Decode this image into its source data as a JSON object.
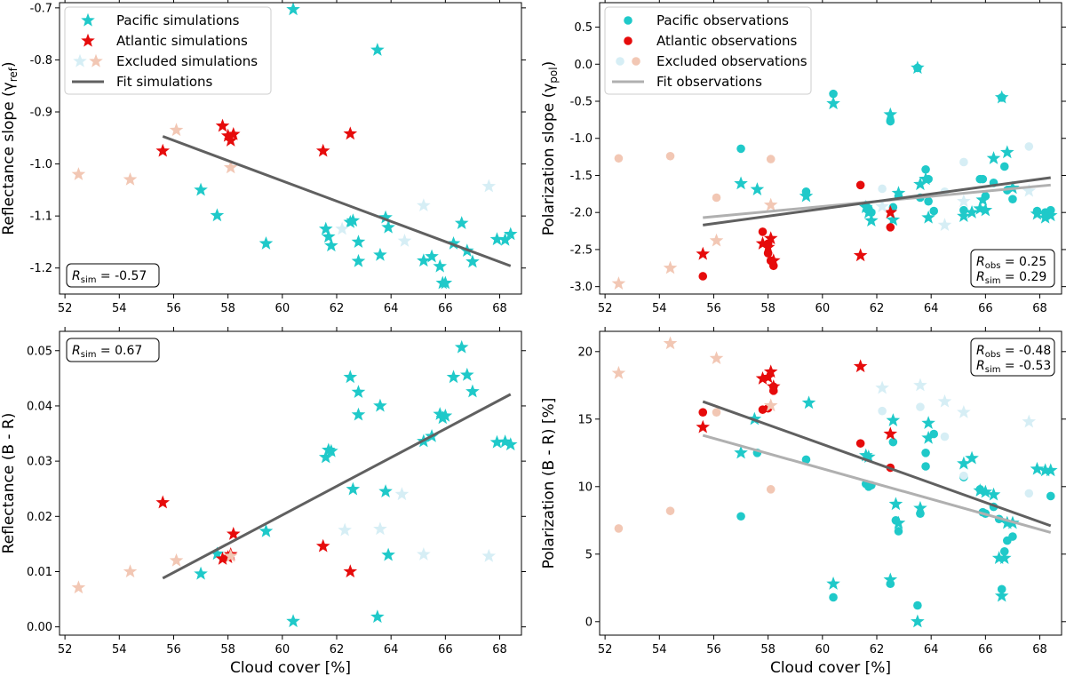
{
  "colors": {
    "pacific": "#1fc9c9",
    "atlantic": "#e60b0b",
    "excluded_pacific": "#d6eef5",
    "excluded_atlantic": "#f2c7b4",
    "fit_sim": "#606060",
    "fit_obs": "#b0b0b0"
  },
  "chart_data": [
    {
      "id": "tl",
      "type": "scatter",
      "xlim": [
        51.8,
        68.8
      ],
      "ylim": [
        -1.25,
        -0.69
      ],
      "xticks": [
        52,
        54,
        56,
        58,
        60,
        62,
        64,
        66,
        68
      ],
      "yticks": [
        -1.2,
        -1.1,
        -1.0,
        -0.9,
        -0.8,
        -0.7
      ],
      "ytick_labels": [
        "-1.2",
        "-1.1",
        "-1.0",
        "-0.9",
        "-0.8",
        "-0.7"
      ],
      "xlabel": "",
      "ylabel": "Reflectance slope (γ",
      "ylabel_sub": "ref",
      "ylabel_end": ")",
      "legend": [
        {
          "label": "Pacific simulations",
          "marker": "star",
          "color": "pacific"
        },
        {
          "label": "Atlantic simulations",
          "marker": "star",
          "color": "atlantic"
        },
        {
          "label": "Excluded simulations",
          "marker": "star-pair",
          "color": "excluded"
        },
        {
          "label": "Fit simulations",
          "marker": "line",
          "color": "fit_sim"
        }
      ],
      "r_box": {
        "lines": [
          {
            "name": "R",
            "sub": "sim",
            "value": " = -0.57"
          }
        ],
        "position": "bottom-left"
      },
      "fits": [
        {
          "x": [
            55.6,
            68.4
          ],
          "y": [
            -0.947,
            -1.196
          ],
          "color": "fit_sim"
        }
      ],
      "series": [
        {
          "name": "Pacific simulations",
          "marker": "star",
          "color": "pacific",
          "x": [
            60.4,
            63.5,
            57.0,
            57.6,
            59.4,
            61.6,
            61.7,
            61.8,
            62.5,
            62.6,
            62.8,
            62.8,
            63.6,
            63.8,
            63.9,
            65.2,
            65.5,
            65.8,
            65.9,
            66.0,
            66.3,
            66.6,
            66.8,
            67.0,
            67.9,
            68.2,
            68.4
          ],
          "y": [
            -0.703,
            -0.781,
            -1.05,
            -1.099,
            -1.153,
            -1.125,
            -1.14,
            -1.157,
            -1.112,
            -1.109,
            -1.15,
            -1.187,
            -1.175,
            -1.103,
            -1.122,
            -1.186,
            -1.178,
            -1.197,
            -1.229,
            -1.229,
            -1.153,
            -1.114,
            -1.167,
            -1.188,
            -1.145,
            -1.146,
            -1.135
          ]
        },
        {
          "name": "Atlantic simulations",
          "marker": "star",
          "color": "atlantic",
          "x": [
            55.6,
            57.8,
            58.0,
            58.1,
            58.2,
            61.5,
            62.5
          ],
          "y": [
            -0.975,
            -0.927,
            -0.946,
            -0.955,
            -0.943,
            -0.975,
            -0.942
          ]
        },
        {
          "name": "Excluded simulations",
          "marker": "star",
          "color": "excluded_atlantic",
          "x": [
            52.5,
            54.4,
            56.1,
            58.1
          ],
          "y": [
            -1.02,
            -1.03,
            -0.935,
            -1.007
          ]
        },
        {
          "name": "Excluded simulations",
          "marker": "star",
          "color": "excluded_pacific",
          "x": [
            62.2,
            64.5,
            65.2,
            67.6
          ],
          "y": [
            -1.125,
            -1.148,
            -1.08,
            -1.043
          ]
        }
      ]
    },
    {
      "id": "tr",
      "type": "scatter",
      "xlim": [
        51.8,
        68.8
      ],
      "ylim": [
        -3.1,
        0.83
      ],
      "xticks": [
        52,
        54,
        56,
        58,
        60,
        62,
        64,
        66,
        68
      ],
      "yticks": [
        -3.0,
        -2.5,
        -2.0,
        -1.5,
        -1.0,
        -0.5,
        0.0,
        0.5
      ],
      "ytick_labels": [
        "-3.0",
        "-2.5",
        "-2.0",
        "-1.5",
        "-1.0",
        "-0.5",
        "0.0",
        "0.5"
      ],
      "xlabel": "",
      "ylabel": "Polarization slope (γ",
      "ylabel_sub": "pol",
      "ylabel_end": ")",
      "legend": [
        {
          "label": "Pacific observations",
          "marker": "circle",
          "color": "pacific"
        },
        {
          "label": "Atlantic observations",
          "marker": "circle",
          "color": "atlantic"
        },
        {
          "label": "Excluded observations",
          "marker": "circle-pair",
          "color": "excluded"
        },
        {
          "label": "Fit observations",
          "marker": "line",
          "color": "fit_obs"
        }
      ],
      "r_box": {
        "lines": [
          {
            "name": "R",
            "sub": "obs",
            "value": " = 0.25"
          },
          {
            "name": "R",
            "sub": "sim",
            "value": " = 0.29"
          }
        ],
        "position": "bottom-right"
      },
      "fits": [
        {
          "x": [
            55.6,
            68.4
          ],
          "y": [
            -2.07,
            -1.63
          ],
          "color": "fit_obs"
        },
        {
          "x": [
            55.6,
            68.4
          ],
          "y": [
            -2.17,
            -1.53
          ],
          "color": "fit_sim"
        }
      ],
      "series": [
        {
          "name": "Pacific observations",
          "marker": "circle",
          "color": "pacific",
          "x": [
            57.0,
            60.4,
            63.5,
            66.6,
            62.5,
            59.4,
            61.6,
            61.7,
            61.8,
            62.6,
            62.8,
            63.6,
            63.8,
            63.9,
            63.9,
            64.1,
            65.2,
            65.8,
            65.9,
            66.0,
            66.3,
            66.7,
            66.8,
            67.0,
            67.9,
            68.2,
            68.4
          ],
          "y": [
            -1.14,
            -0.4,
            -0.05,
            -0.45,
            -0.77,
            -1.72,
            -1.9,
            -1.95,
            -2.0,
            -1.93,
            -1.78,
            -1.8,
            -1.42,
            -1.55,
            -1.85,
            -1.98,
            -1.97,
            -1.55,
            -1.55,
            -1.78,
            -1.6,
            -1.38,
            -1.7,
            -1.82,
            -1.98,
            -2.0,
            -1.97
          ]
        },
        {
          "name": "Pacific simulations",
          "marker": "star",
          "color": "pacific",
          "x": [
            57.0,
            57.6,
            59.4,
            60.4,
            61.6,
            61.7,
            61.8,
            62.5,
            62.6,
            62.8,
            63.5,
            63.6,
            63.8,
            63.9,
            65.2,
            65.5,
            65.8,
            65.9,
            66.0,
            66.3,
            66.6,
            66.8,
            67.0,
            67.9,
            68.2,
            68.4
          ],
          "y": [
            -1.61,
            -1.69,
            -1.78,
            -0.53,
            -1.93,
            -2.0,
            -2.11,
            -0.68,
            -2.1,
            -1.74,
            -0.05,
            -1.62,
            -1.55,
            -2.07,
            -2.05,
            -2.0,
            -1.95,
            -1.83,
            -1.97,
            -1.27,
            -0.45,
            -1.19,
            -1.67,
            -2.02,
            -2.07,
            -2.04
          ]
        },
        {
          "name": "Atlantic observations",
          "marker": "circle",
          "color": "atlantic",
          "x": [
            55.6,
            57.8,
            58.0,
            58.0,
            58.1,
            58.2,
            61.4,
            62.5
          ],
          "y": [
            -2.86,
            -2.26,
            -2.42,
            -2.55,
            -2.65,
            -2.72,
            -1.63,
            -2.2
          ]
        },
        {
          "name": "Atlantic simulations",
          "marker": "star",
          "color": "atlantic",
          "x": [
            55.6,
            57.8,
            58.0,
            58.1,
            58.2,
            61.4,
            62.5
          ],
          "y": [
            -2.56,
            -2.42,
            -2.47,
            -2.35,
            -2.65,
            -2.58,
            -2.0
          ]
        },
        {
          "name": "Excluded observations",
          "marker": "circle",
          "color": "excluded_atlantic",
          "x": [
            52.5,
            54.4,
            56.1,
            58.1
          ],
          "y": [
            -1.27,
            -1.24,
            -1.8,
            -1.28
          ]
        },
        {
          "name": "Excluded observations",
          "marker": "circle",
          "color": "excluded_pacific",
          "x": [
            62.2,
            64.5,
            65.2,
            67.6
          ],
          "y": [
            -1.68,
            -1.72,
            -1.32,
            -1.11
          ]
        },
        {
          "name": "Excluded simulations",
          "marker": "star",
          "color": "excluded_atlantic",
          "x": [
            52.5,
            54.4,
            56.1,
            58.1
          ],
          "y": [
            -2.96,
            -2.75,
            -2.38,
            -1.9
          ]
        },
        {
          "name": "Excluded simulations",
          "marker": "star",
          "color": "excluded_pacific",
          "x": [
            62.2,
            64.5,
            65.2,
            67.6
          ],
          "y": [
            -1.92,
            -2.17,
            -1.85,
            -1.71
          ]
        }
      ]
    },
    {
      "id": "bl",
      "type": "scatter",
      "xlim": [
        51.8,
        68.8
      ],
      "ylim": [
        -0.0015,
        0.0535
      ],
      "xticks": [
        52,
        54,
        56,
        58,
        60,
        62,
        64,
        66,
        68
      ],
      "yticks": [
        0.0,
        0.01,
        0.02,
        0.03,
        0.04,
        0.05
      ],
      "ytick_labels": [
        "0.00",
        "0.01",
        "0.02",
        "0.03",
        "0.04",
        "0.05"
      ],
      "xlabel": "Cloud cover [%]",
      "ylabel": "Reflectance (B - R)",
      "ylabel_sub": "",
      "ylabel_end": "",
      "legend": [],
      "r_box": {
        "lines": [
          {
            "name": "R",
            "sub": "sim",
            "value": " = 0.67"
          }
        ],
        "position": "top-left"
      },
      "fits": [
        {
          "x": [
            55.6,
            68.4
          ],
          "y": [
            0.0088,
            0.0421
          ],
          "color": "fit_sim"
        }
      ],
      "series": [
        {
          "name": "Pacific simulations",
          "marker": "star",
          "color": "pacific",
          "x": [
            60.4,
            63.5,
            57.0,
            57.6,
            59.4,
            61.6,
            61.7,
            61.8,
            62.5,
            62.6,
            62.8,
            62.8,
            63.6,
            63.8,
            63.9,
            65.2,
            65.5,
            65.8,
            65.9,
            66.0,
            66.3,
            66.6,
            66.8,
            67.0,
            67.9,
            68.2,
            68.4
          ],
          "y": [
            0.001,
            0.0018,
            0.0096,
            0.0132,
            0.0173,
            0.0307,
            0.032,
            0.0318,
            0.0452,
            0.0249,
            0.0425,
            0.0384,
            0.04,
            0.0245,
            0.013,
            0.0336,
            0.0345,
            0.0385,
            0.0378,
            0.0382,
            0.0452,
            0.0506,
            0.0456,
            0.0426,
            0.0334,
            0.0335,
            0.033
          ]
        },
        {
          "name": "Atlantic simulations",
          "marker": "star",
          "color": "atlantic",
          "x": [
            55.6,
            57.8,
            58.0,
            58.1,
            58.2,
            61.5,
            62.5
          ],
          "y": [
            0.0225,
            0.0123,
            0.0126,
            0.0131,
            0.0168,
            0.0146,
            0.01
          ]
        },
        {
          "name": "Excluded simulations",
          "marker": "star",
          "color": "excluded_atlantic",
          "x": [
            52.5,
            54.4,
            56.1,
            58.1
          ],
          "y": [
            0.0071,
            0.01,
            0.012,
            0.0128
          ]
        },
        {
          "name": "Excluded simulations",
          "marker": "star",
          "color": "excluded_pacific",
          "x": [
            62.3,
            63.6,
            64.4,
            65.2,
            67.6
          ],
          "y": [
            0.0175,
            0.0177,
            0.024,
            0.0131,
            0.0128
          ]
        }
      ]
    },
    {
      "id": "br",
      "type": "scatter",
      "xlim": [
        51.8,
        68.8
      ],
      "ylim": [
        -1.0,
        21.5
      ],
      "xticks": [
        52,
        54,
        56,
        58,
        60,
        62,
        64,
        66,
        68
      ],
      "yticks": [
        0,
        5,
        10,
        15,
        20
      ],
      "ytick_labels": [
        "0",
        "5",
        "10",
        "15",
        "20"
      ],
      "xlabel": "Cloud cover [%]",
      "ylabel": "Polarization (B - R) [%]",
      "ylabel_sub": "",
      "ylabel_end": "",
      "legend": [],
      "r_box": {
        "lines": [
          {
            "name": "R",
            "sub": "obs",
            "value": " = -0.48"
          },
          {
            "name": "R",
            "sub": "sim",
            "value": " = -0.53"
          }
        ],
        "position": "top-right"
      },
      "fits": [
        {
          "x": [
            55.6,
            68.4
          ],
          "y": [
            13.8,
            6.6
          ],
          "color": "fit_obs"
        },
        {
          "x": [
            55.6,
            68.4
          ],
          "y": [
            16.3,
            7.1
          ],
          "color": "fit_sim"
        }
      ],
      "series": [
        {
          "name": "Pacific observations",
          "marker": "circle",
          "color": "pacific",
          "x": [
            57.0,
            57.6,
            59.4,
            60.4,
            61.6,
            61.7,
            61.8,
            62.5,
            62.6,
            62.7,
            62.8,
            63.5,
            63.6,
            63.8,
            63.8,
            64.1,
            65.2,
            65.8,
            65.9,
            66.0,
            66.3,
            66.5,
            66.6,
            66.7,
            66.8,
            67.0,
            68.4
          ],
          "y": [
            7.8,
            12.5,
            12.0,
            1.8,
            10.2,
            10.0,
            10.1,
            2.8,
            13.3,
            7.5,
            6.7,
            1.2,
            8.0,
            11.5,
            12.5,
            13.9,
            10.7,
            9.8,
            8.1,
            8.0,
            8.5,
            7.6,
            2.4,
            5.2,
            6.0,
            6.3,
            9.3
          ]
        },
        {
          "name": "Pacific simulations",
          "marker": "star",
          "color": "pacific",
          "x": [
            57.0,
            57.5,
            59.5,
            60.4,
            61.6,
            61.7,
            62.5,
            62.6,
            62.7,
            62.8,
            63.5,
            63.6,
            63.9,
            63.9,
            65.2,
            65.5,
            65.8,
            66.0,
            66.3,
            66.5,
            66.6,
            66.7,
            66.8,
            67.0,
            67.9,
            68.2,
            68.4
          ],
          "y": [
            12.5,
            15.0,
            16.2,
            2.8,
            12.3,
            12.2,
            3.1,
            14.9,
            8.7,
            7.3,
            0.0,
            8.4,
            13.6,
            14.7,
            11.7,
            12.1,
            9.7,
            9.6,
            9.4,
            4.7,
            1.9,
            4.7,
            7.3,
            7.3,
            11.3,
            11.2,
            11.2
          ]
        },
        {
          "name": "Atlantic observations",
          "marker": "circle",
          "color": "atlantic",
          "x": [
            55.6,
            57.8,
            58.0,
            58.2,
            58.2,
            61.4,
            62.5
          ],
          "y": [
            15.5,
            15.7,
            15.8,
            17.1,
            17.4,
            13.2,
            11.4
          ]
        },
        {
          "name": "Atlantic simulations",
          "marker": "star",
          "color": "atlantic",
          "x": [
            55.6,
            57.8,
            58.0,
            58.1,
            58.2,
            61.4,
            62.5
          ],
          "y": [
            14.4,
            18.0,
            18.1,
            18.5,
            17.4,
            18.9,
            13.9
          ]
        },
        {
          "name": "Excluded observations",
          "marker": "circle",
          "color": "excluded_atlantic",
          "x": [
            52.5,
            54.4,
            56.1,
            58.1
          ],
          "y": [
            6.9,
            8.2,
            15.5,
            9.8
          ]
        },
        {
          "name": "Excluded observations",
          "marker": "circle",
          "color": "excluded_pacific",
          "x": [
            62.2,
            63.6,
            64.5,
            65.2,
            67.6
          ],
          "y": [
            15.6,
            15.9,
            13.7,
            10.8,
            9.5
          ]
        },
        {
          "name": "Excluded simulations",
          "marker": "star",
          "color": "excluded_atlantic",
          "x": [
            52.5,
            54.4,
            56.1,
            58.1
          ],
          "y": [
            18.4,
            20.6,
            19.5,
            16.0
          ]
        },
        {
          "name": "Excluded simulations",
          "marker": "star",
          "color": "excluded_pacific",
          "x": [
            62.2,
            63.6,
            64.5,
            65.2,
            67.6
          ],
          "y": [
            17.3,
            17.5,
            16.3,
            15.5,
            14.8
          ]
        }
      ]
    }
  ]
}
